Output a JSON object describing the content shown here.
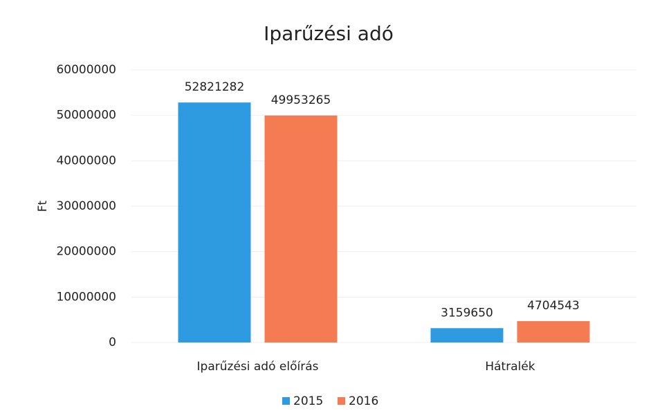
{
  "chart_data": {
    "type": "bar",
    "title": "Iparűzési adó",
    "y_label": "Ft",
    "categories": [
      "Iparűzési adó előírás",
      "Hátralék"
    ],
    "series": [
      {
        "name": "2015",
        "color": "#2e9ae0",
        "values": [
          52821282,
          3159650
        ]
      },
      {
        "name": "2016",
        "color": "#f47b52",
        "values": [
          49953265,
          4704543
        ]
      }
    ],
    "ylim": [
      0,
      60000000
    ],
    "yticks": [
      0,
      10000000,
      20000000,
      30000000,
      40000000,
      50000000,
      60000000
    ],
    "grid": true,
    "legend": "bottom"
  }
}
